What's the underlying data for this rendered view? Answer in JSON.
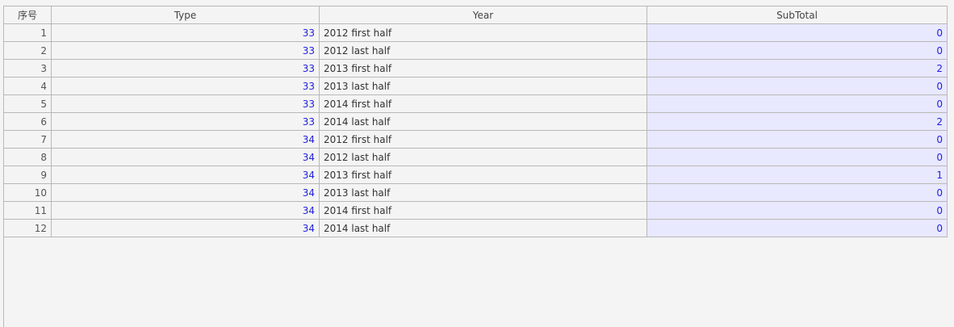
{
  "headers": [
    "序号",
    "Type",
    "Year",
    "SubTotal"
  ],
  "rows": [
    {
      "idx": "1",
      "type": "33",
      "year": "2012 first half",
      "subtotal": "0"
    },
    {
      "idx": "2",
      "type": "33",
      "year": "2012 last half",
      "subtotal": "0"
    },
    {
      "idx": "3",
      "type": "33",
      "year": "2013 first half",
      "subtotal": "2"
    },
    {
      "idx": "4",
      "type": "33",
      "year": "2013 last half",
      "subtotal": "0"
    },
    {
      "idx": "5",
      "type": "33",
      "year": "2014 first half",
      "subtotal": "0"
    },
    {
      "idx": "6",
      "type": "33",
      "year": "2014 last half",
      "subtotal": "2"
    },
    {
      "idx": "7",
      "type": "34",
      "year": "2012 first half",
      "subtotal": "0"
    },
    {
      "idx": "8",
      "type": "34",
      "year": "2012 last half",
      "subtotal": "0"
    },
    {
      "idx": "9",
      "type": "34",
      "year": "2013 first half",
      "subtotal": "1"
    },
    {
      "idx": "10",
      "type": "34",
      "year": "2013 last half",
      "subtotal": "0"
    },
    {
      "idx": "11",
      "type": "34",
      "year": "2014 first half",
      "subtotal": "0"
    },
    {
      "idx": "12",
      "type": "34",
      "year": "2014 last half",
      "subtotal": "0"
    }
  ],
  "colors": {
    "value_text": "#2222dd",
    "subtotal_bg": "#e8e8ff",
    "border": "#b8b8b8"
  }
}
